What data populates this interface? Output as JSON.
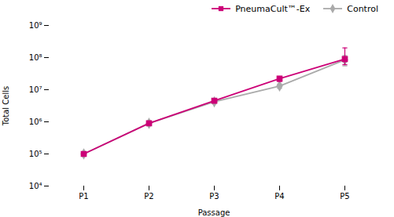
{
  "chart_data": {
    "type": "line",
    "xlabel": "Passage",
    "ylabel": "Total Cells",
    "categories": [
      "P1",
      "P2",
      "P3",
      "P4",
      "P5"
    ],
    "series": [
      {
        "name": "PneumaCult™-Ex",
        "color": "#CC0077",
        "marker": "square",
        "values": [
          100000,
          900000,
          4500000,
          22000000,
          90000000
        ],
        "yerr_low": [
          0,
          0,
          200000,
          4000000,
          30000000
        ],
        "yerr_high": [
          0,
          0,
          200000,
          4000000,
          110000000
        ]
      },
      {
        "name": "Control",
        "color": "#aaaaaa",
        "marker": "diamond",
        "values": [
          100000,
          900000,
          4200000,
          13000000,
          85000000
        ],
        "yerr_low": [
          0,
          0,
          200000,
          2000000,
          30000000
        ],
        "yerr_high": [
          0,
          0,
          200000,
          2000000,
          30000000
        ]
      }
    ],
    "log": "y",
    "ylim": [
      10000,
      1000000000
    ],
    "yticks": [
      {
        "value": 10000,
        "label": "10⁴"
      },
      {
        "value": 100000,
        "label": "10⁵"
      },
      {
        "value": 1000000,
        "label": "10⁶"
      },
      {
        "value": 10000000,
        "label": "10⁷"
      },
      {
        "value": 100000000,
        "label": "10⁸"
      },
      {
        "value": 1000000000,
        "label": "10⁹"
      }
    ],
    "grid": false,
    "legend": "upper right"
  }
}
